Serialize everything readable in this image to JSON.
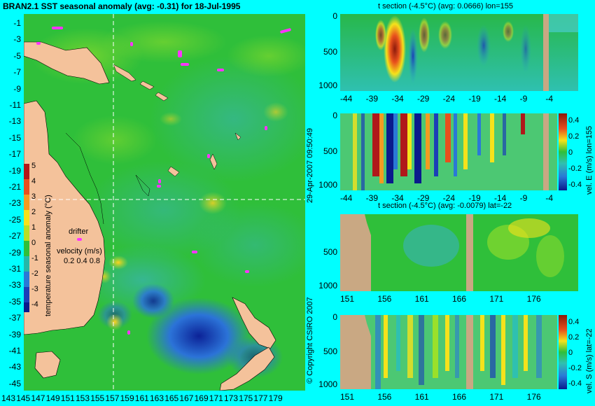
{
  "main_map": {
    "title": "BRAN2.1 SST seasonal anomaly (avg: -0.31) for 18-Jul-1995",
    "y_ticks": [
      "-1",
      "-3",
      "-5",
      "-7",
      "-9",
      "-11",
      "-13",
      "-15",
      "-17",
      "-19",
      "-21",
      "-23",
      "-25",
      "-27",
      "-29",
      "-31",
      "-33",
      "-35",
      "-37",
      "-39",
      "-41",
      "-43",
      "-45"
    ],
    "x_ticks": [
      "143",
      "145",
      "147",
      "149",
      "151",
      "153",
      "155",
      "157",
      "159",
      "161",
      "163",
      "165",
      "167",
      "169",
      "171",
      "173",
      "175",
      "177",
      "179"
    ],
    "colorbar": {
      "label": "temperature seasonal anomaly (°C)",
      "ticks": [
        "5",
        "4",
        "3",
        "2",
        "1",
        "0",
        "-1",
        "-2",
        "-3",
        "-4"
      ]
    },
    "legend": {
      "drifter_label": "drifter",
      "velocity_label": "velocity (m/s)",
      "velocity_values": "0.2 0.4 0.8"
    },
    "section_lon": 155,
    "section_lat": -22
  },
  "panels": [
    {
      "id": "t-section-lon",
      "title": "t section (-4.5°C) (avg: 0.0666) lon=155",
      "x_ticks": [
        "-44",
        "-39",
        "-34",
        "-29",
        "-24",
        "-19",
        "-14",
        "-9",
        "-4"
      ],
      "y_ticks": [
        "0",
        "500",
        "1000"
      ]
    },
    {
      "id": "vel-e-lon",
      "title": "",
      "x_ticks": [
        "-44",
        "-39",
        "-34",
        "-29",
        "-24",
        "-19",
        "-14",
        "-9",
        "-4"
      ],
      "y_ticks": [
        "0",
        "500",
        "1000"
      ],
      "colorbar_label": "vel. E (m/s) lon=155",
      "colorbar_ticks": [
        "0.4",
        "0.2",
        "0",
        "-0.2",
        "-0.4"
      ]
    },
    {
      "id": "t-section-lat",
      "title": "t section (-4.5°C) (avg: -0.0079) lat=-22",
      "x_ticks": [
        "151",
        "156",
        "161",
        "166",
        "171",
        "176"
      ],
      "y_ticks": [
        "500",
        "1000"
      ]
    },
    {
      "id": "vel-s-lat",
      "title": "",
      "x_ticks": [
        "151",
        "156",
        "161",
        "166",
        "171",
        "176"
      ],
      "y_ticks": [
        "0",
        "500",
        "1000"
      ],
      "colorbar_label": "vel. S (m/s) lat=-22",
      "colorbar_ticks": [
        "0.4",
        "0.2",
        "0",
        "-0.2",
        "-0.4"
      ]
    }
  ],
  "copyright": "© Copyright CSIRO 2007",
  "timestamp": "29-Apr-2007 09:50:49",
  "colors": {
    "background": "#00ffff",
    "land": "#f4c29b",
    "ocean_base": "#2fbf3a",
    "section_land": "#c9a883",
    "drifter": "#ff33ff"
  }
}
